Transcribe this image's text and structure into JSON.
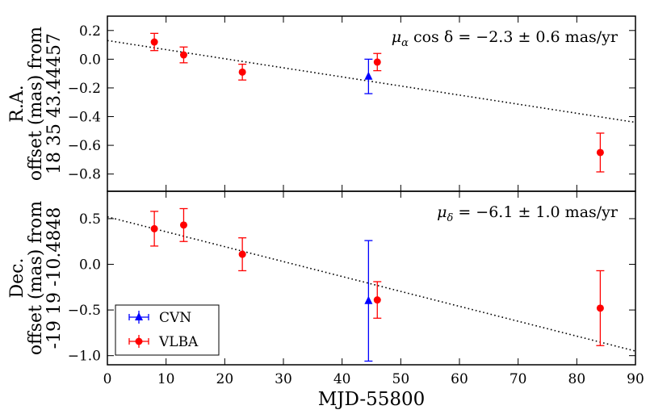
{
  "chart_data": [
    {
      "type": "scatter",
      "panel": "top",
      "ylabel_lines": [
        "R.A.",
        "offset (mas) from",
        "18 35 43.44457"
      ],
      "annotation": {
        "prefix": "μ",
        "sub": "α",
        "body": " cos δ = −2.3 ± 0.6 mas/yr"
      },
      "xlim": [
        0,
        90
      ],
      "ylim": [
        -0.92,
        0.3
      ],
      "yticks": [
        0.2,
        0.0,
        -0.2,
        -0.4,
        -0.6,
        -0.8
      ],
      "ytick_labels": [
        "0.2",
        "0.0",
        "−0.2",
        "−0.4",
        "−0.6",
        "−0.8"
      ],
      "fit": {
        "x": [
          0,
          90
        ],
        "y": [
          0.13,
          -0.44
        ]
      },
      "series": [
        {
          "name": "CVN",
          "color": "#0000ff",
          "marker": "triangle",
          "points": [
            {
              "x": 44.5,
              "y": -0.12,
              "err": 0.12
            }
          ]
        },
        {
          "name": "VLBA",
          "color": "#ff0000",
          "marker": "circle",
          "points": [
            {
              "x": 8,
              "y": 0.12,
              "err": 0.06
            },
            {
              "x": 13,
              "y": 0.03,
              "err": 0.055
            },
            {
              "x": 23,
              "y": -0.09,
              "err": 0.055
            },
            {
              "x": 46,
              "y": -0.02,
              "err": 0.06
            },
            {
              "x": 84,
              "y": -0.65,
              "err": 0.135
            }
          ]
        }
      ]
    },
    {
      "type": "scatter",
      "panel": "bottom",
      "ylabel_lines": [
        "Dec.",
        "offset (mas) from",
        "-19 19 -10.4848"
      ],
      "annotation": {
        "prefix": "μ",
        "sub": "δ",
        "body": " = −6.1 ± 1.0 mas/yr"
      },
      "xlim": [
        0,
        90
      ],
      "ylim": [
        -1.1,
        0.8
      ],
      "yticks": [
        0.5,
        0.0,
        -0.5,
        -1.0
      ],
      "ytick_labels": [
        "0.5",
        "0.0",
        "−0.5",
        "−1.0"
      ],
      "xticks": [
        0,
        10,
        20,
        30,
        40,
        50,
        60,
        70,
        80,
        90
      ],
      "xtick_labels": [
        "0",
        "10",
        "20",
        "30",
        "40",
        "50",
        "60",
        "70",
        "80",
        "90"
      ],
      "xlabel": "MJD-55800",
      "fit": {
        "x": [
          0,
          90
        ],
        "y": [
          0.52,
          -0.95
        ]
      },
      "legend": {
        "placement": "lower-left",
        "entries": [
          "CVN",
          "VLBA"
        ]
      },
      "series": [
        {
          "name": "CVN",
          "color": "#0000ff",
          "marker": "triangle",
          "points": [
            {
              "x": 44.5,
              "y": -0.4,
              "err": 0.66
            }
          ]
        },
        {
          "name": "VLBA",
          "color": "#ff0000",
          "marker": "circle",
          "points": [
            {
              "x": 8,
              "y": 0.39,
              "err": 0.19
            },
            {
              "x": 13,
              "y": 0.43,
              "err": 0.18
            },
            {
              "x": 23,
              "y": 0.11,
              "err": 0.18
            },
            {
              "x": 46,
              "y": -0.39,
              "err": 0.2
            },
            {
              "x": 84,
              "y": -0.48,
              "err": 0.41
            }
          ]
        }
      ]
    }
  ]
}
